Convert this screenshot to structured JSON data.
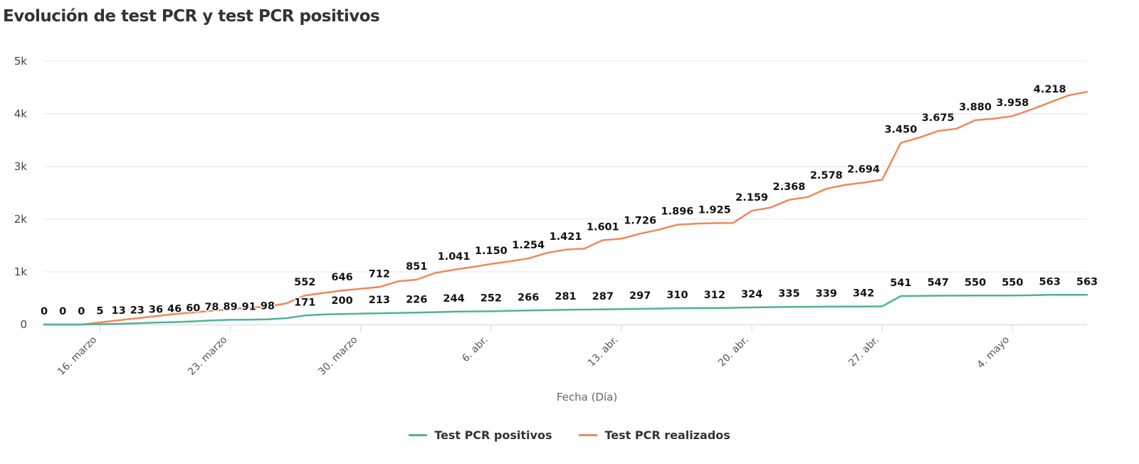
{
  "title": "Evolución de test PCR y test PCR positivos",
  "legend": {
    "positivos": "Test PCR positivos",
    "realizados": "Test PCR realizados"
  },
  "colors": {
    "positivos": "#4fb393",
    "realizados": "#f0875a"
  },
  "chart_data": {
    "type": "line",
    "title": "Evolución de test PCR y test PCR positivos",
    "xlabel": "Fecha (Día)",
    "ylabel": "",
    "ylim": [
      0,
      5000
    ],
    "yticks": [
      0,
      1000,
      2000,
      3000,
      4000,
      5000
    ],
    "ytick_labels": [
      "0",
      "1k",
      "2k",
      "3k",
      "4k",
      "5k"
    ],
    "grid": true,
    "legend_position": "bottom",
    "x_start": "2020-03-13",
    "x_end": "2020-05-08",
    "xticks": [
      {
        "date": "2020-03-16",
        "label": "16. marzo"
      },
      {
        "date": "2020-03-23",
        "label": "23. marzo"
      },
      {
        "date": "2020-03-30",
        "label": "30. marzo"
      },
      {
        "date": "2020-04-06",
        "label": "6. abr."
      },
      {
        "date": "2020-04-13",
        "label": "13. abr."
      },
      {
        "date": "2020-04-20",
        "label": "20. abr."
      },
      {
        "date": "2020-04-27",
        "label": "27. abr."
      },
      {
        "date": "2020-05-04",
        "label": "4. mayo"
      }
    ],
    "series": [
      {
        "name": "Test PCR realizados",
        "key": "realizados",
        "points": [
          {
            "x": "2020-03-13",
            "y": 0
          },
          {
            "x": "2020-03-14",
            "y": 0
          },
          {
            "x": "2020-03-15",
            "y": 0
          },
          {
            "x": "2020-03-16",
            "y": 40
          },
          {
            "x": "2020-03-17",
            "y": 80
          },
          {
            "x": "2020-03-18",
            "y": 120
          },
          {
            "x": "2020-03-19",
            "y": 160
          },
          {
            "x": "2020-03-20",
            "y": 200
          },
          {
            "x": "2020-03-21",
            "y": 230
          },
          {
            "x": "2020-03-22",
            "y": 260
          },
          {
            "x": "2020-03-23",
            "y": 290
          },
          {
            "x": "2020-03-24",
            "y": 320
          },
          {
            "x": "2020-03-25",
            "y": 340
          },
          {
            "x": "2020-03-26",
            "y": 400
          },
          {
            "x": "2020-03-27",
            "y": 552,
            "label": "552"
          },
          {
            "x": "2020-03-28",
            "y": 600
          },
          {
            "x": "2020-03-29",
            "y": 646,
            "label": "646"
          },
          {
            "x": "2020-03-30",
            "y": 680
          },
          {
            "x": "2020-03-31",
            "y": 712,
            "label": "712"
          },
          {
            "x": "2020-04-01",
            "y": 820
          },
          {
            "x": "2020-04-02",
            "y": 851,
            "label": "851"
          },
          {
            "x": "2020-04-03",
            "y": 980
          },
          {
            "x": "2020-04-04",
            "y": 1041,
            "label": "1.041"
          },
          {
            "x": "2020-04-05",
            "y": 1090
          },
          {
            "x": "2020-04-06",
            "y": 1150,
            "label": "1.150"
          },
          {
            "x": "2020-04-07",
            "y": 1200
          },
          {
            "x": "2020-04-08",
            "y": 1254,
            "label": "1.254"
          },
          {
            "x": "2020-04-09",
            "y": 1360
          },
          {
            "x": "2020-04-10",
            "y": 1421,
            "label": "1.421"
          },
          {
            "x": "2020-04-11",
            "y": 1440
          },
          {
            "x": "2020-04-12",
            "y": 1601,
            "label": "1.601"
          },
          {
            "x": "2020-04-13",
            "y": 1630
          },
          {
            "x": "2020-04-14",
            "y": 1726,
            "label": "1.726"
          },
          {
            "x": "2020-04-15",
            "y": 1800
          },
          {
            "x": "2020-04-16",
            "y": 1896,
            "label": "1.896"
          },
          {
            "x": "2020-04-17",
            "y": 1915
          },
          {
            "x": "2020-04-18",
            "y": 1925,
            "label": "1.925"
          },
          {
            "x": "2020-04-19",
            "y": 1930
          },
          {
            "x": "2020-04-20",
            "y": 2159,
            "label": "2.159"
          },
          {
            "x": "2020-04-21",
            "y": 2220
          },
          {
            "x": "2020-04-22",
            "y": 2368,
            "label": "2.368"
          },
          {
            "x": "2020-04-23",
            "y": 2420
          },
          {
            "x": "2020-04-24",
            "y": 2578,
            "label": "2.578"
          },
          {
            "x": "2020-04-25",
            "y": 2650
          },
          {
            "x": "2020-04-26",
            "y": 2694,
            "label": "2.694"
          },
          {
            "x": "2020-04-27",
            "y": 2750
          },
          {
            "x": "2020-04-28",
            "y": 3450,
            "label": "3.450"
          },
          {
            "x": "2020-04-29",
            "y": 3550
          },
          {
            "x": "2020-04-30",
            "y": 3675,
            "label": "3.675"
          },
          {
            "x": "2020-05-01",
            "y": 3720
          },
          {
            "x": "2020-05-02",
            "y": 3880,
            "label": "3.880"
          },
          {
            "x": "2020-05-03",
            "y": 3910
          },
          {
            "x": "2020-05-04",
            "y": 3958,
            "label": "3.958"
          },
          {
            "x": "2020-05-05",
            "y": 4080
          },
          {
            "x": "2020-05-06",
            "y": 4218,
            "label": "4.218"
          },
          {
            "x": "2020-05-07",
            "y": 4350
          },
          {
            "x": "2020-05-08",
            "y": 4420
          }
        ]
      },
      {
        "name": "Test PCR positivos",
        "key": "positivos",
        "points": [
          {
            "x": "2020-03-13",
            "y": 0,
            "label": "0"
          },
          {
            "x": "2020-03-14",
            "y": 0,
            "label": "0"
          },
          {
            "x": "2020-03-15",
            "y": 0,
            "label": "0"
          },
          {
            "x": "2020-03-16",
            "y": 5,
            "label": "5"
          },
          {
            "x": "2020-03-17",
            "y": 13,
            "label": "13"
          },
          {
            "x": "2020-03-18",
            "y": 23,
            "label": "23"
          },
          {
            "x": "2020-03-19",
            "y": 36,
            "label": "36"
          },
          {
            "x": "2020-03-20",
            "y": 46,
            "label": "46"
          },
          {
            "x": "2020-03-21",
            "y": 60,
            "label": "60"
          },
          {
            "x": "2020-03-22",
            "y": 78,
            "label": "78"
          },
          {
            "x": "2020-03-23",
            "y": 89,
            "label": "89"
          },
          {
            "x": "2020-03-24",
            "y": 91,
            "label": "91"
          },
          {
            "x": "2020-03-25",
            "y": 98,
            "label": "98"
          },
          {
            "x": "2020-03-26",
            "y": 120
          },
          {
            "x": "2020-03-27",
            "y": 171,
            "label": "171"
          },
          {
            "x": "2020-03-28",
            "y": 190
          },
          {
            "x": "2020-03-29",
            "y": 200,
            "label": "200"
          },
          {
            "x": "2020-03-30",
            "y": 207
          },
          {
            "x": "2020-03-31",
            "y": 213,
            "label": "213"
          },
          {
            "x": "2020-04-01",
            "y": 220
          },
          {
            "x": "2020-04-02",
            "y": 226,
            "label": "226"
          },
          {
            "x": "2020-04-03",
            "y": 235
          },
          {
            "x": "2020-04-04",
            "y": 244,
            "label": "244"
          },
          {
            "x": "2020-04-05",
            "y": 248
          },
          {
            "x": "2020-04-06",
            "y": 252,
            "label": "252"
          },
          {
            "x": "2020-04-07",
            "y": 259
          },
          {
            "x": "2020-04-08",
            "y": 266,
            "label": "266"
          },
          {
            "x": "2020-04-09",
            "y": 274
          },
          {
            "x": "2020-04-10",
            "y": 281,
            "label": "281"
          },
          {
            "x": "2020-04-11",
            "y": 284
          },
          {
            "x": "2020-04-12",
            "y": 287,
            "label": "287"
          },
          {
            "x": "2020-04-13",
            "y": 292
          },
          {
            "x": "2020-04-14",
            "y": 297,
            "label": "297"
          },
          {
            "x": "2020-04-15",
            "y": 303
          },
          {
            "x": "2020-04-16",
            "y": 310,
            "label": "310"
          },
          {
            "x": "2020-04-17",
            "y": 311
          },
          {
            "x": "2020-04-18",
            "y": 312,
            "label": "312"
          },
          {
            "x": "2020-04-19",
            "y": 318
          },
          {
            "x": "2020-04-20",
            "y": 324,
            "label": "324"
          },
          {
            "x": "2020-04-21",
            "y": 330
          },
          {
            "x": "2020-04-22",
            "y": 335,
            "label": "335"
          },
          {
            "x": "2020-04-23",
            "y": 337
          },
          {
            "x": "2020-04-24",
            "y": 339,
            "label": "339"
          },
          {
            "x": "2020-04-25",
            "y": 340
          },
          {
            "x": "2020-04-26",
            "y": 342,
            "label": "342"
          },
          {
            "x": "2020-04-27",
            "y": 345
          },
          {
            "x": "2020-04-28",
            "y": 541,
            "label": "541"
          },
          {
            "x": "2020-04-29",
            "y": 544
          },
          {
            "x": "2020-04-30",
            "y": 547,
            "label": "547"
          },
          {
            "x": "2020-05-01",
            "y": 548
          },
          {
            "x": "2020-05-02",
            "y": 550,
            "label": "550"
          },
          {
            "x": "2020-05-03",
            "y": 550
          },
          {
            "x": "2020-05-04",
            "y": 550,
            "label": "550"
          },
          {
            "x": "2020-05-05",
            "y": 556
          },
          {
            "x": "2020-05-06",
            "y": 563,
            "label": "563"
          },
          {
            "x": "2020-05-07",
            "y": 563
          },
          {
            "x": "2020-05-08",
            "y": 563,
            "label": "563"
          }
        ]
      }
    ]
  }
}
